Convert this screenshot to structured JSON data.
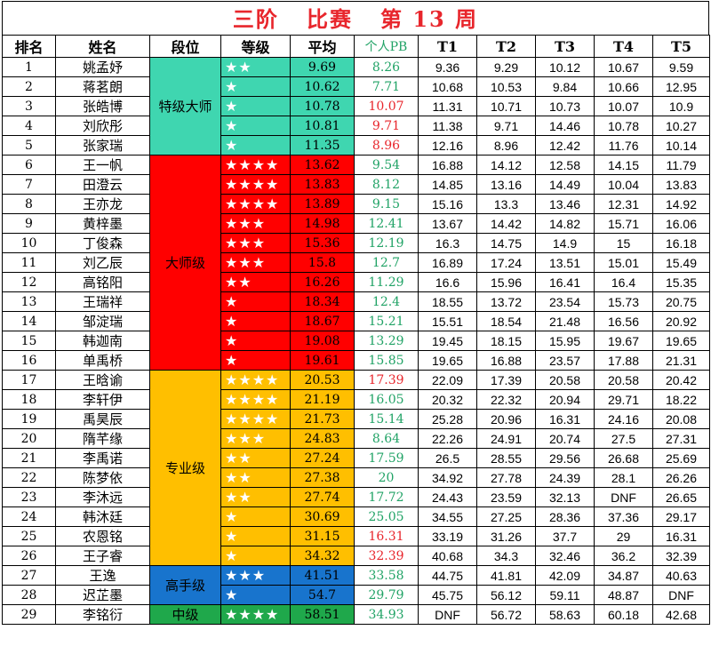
{
  "title": "三阶   比赛   第 13 周",
  "headers": [
    "排名",
    "姓名",
    "段位",
    "等级",
    "平均",
    "个人PB",
    "T1",
    "T2",
    "T3",
    "T4",
    "T5"
  ],
  "colors": {
    "grandmaster": "#3fd6b0",
    "master": "#ff0000",
    "professional": "#ffbf00",
    "expert": "#1874cd",
    "intermediate": "#1fa84b",
    "avg_grandmaster": "#3fd6b0",
    "avg_master": "#ff0000",
    "avg_professional": "#ffbf00",
    "avg_expert": "#1874cd",
    "avg_intermediate": "#1fa84b",
    "pb_green": "#21a366",
    "pb_red": "#e8262c",
    "title_red": "#e8262c"
  },
  "levels": [
    {
      "label": "特级大师",
      "rows": 5,
      "tier": "grandmaster"
    },
    {
      "label": "大师级",
      "rows": 11,
      "tier": "master"
    },
    {
      "label": "专业级",
      "rows": 10,
      "tier": "professional"
    },
    {
      "label": "高手级",
      "rows": 2,
      "tier": "expert"
    },
    {
      "label": "中级",
      "rows": 1,
      "tier": "intermediate"
    }
  ],
  "rows": [
    {
      "rank": "1",
      "name": "姚孟妤",
      "stars": "★★",
      "avg": "9.69",
      "pb": "8.26",
      "pb_color": "green",
      "t": [
        "9.36",
        "9.29",
        "10.12",
        "10.67",
        "9.59"
      ],
      "tier": "grandmaster"
    },
    {
      "rank": "2",
      "name": "蒋茗朗",
      "stars": "★",
      "avg": "10.62",
      "pb": "7.71",
      "pb_color": "green",
      "t": [
        "10.68",
        "10.53",
        "9.84",
        "10.66",
        "12.95"
      ],
      "tier": "grandmaster"
    },
    {
      "rank": "3",
      "name": "张皓博",
      "stars": "★",
      "avg": "10.78",
      "pb": "10.07",
      "pb_color": "red",
      "t": [
        "11.31",
        "10.71",
        "10.73",
        "10.07",
        "10.9"
      ],
      "tier": "grandmaster"
    },
    {
      "rank": "4",
      "name": "刘欣彤",
      "stars": "★",
      "avg": "10.81",
      "pb": "9.71",
      "pb_color": "red",
      "t": [
        "11.38",
        "9.71",
        "14.46",
        "10.78",
        "10.27"
      ],
      "tier": "grandmaster"
    },
    {
      "rank": "5",
      "name": "张家瑞",
      "stars": "★",
      "avg": "11.35",
      "pb": "8.96",
      "pb_color": "red",
      "t": [
        "12.16",
        "8.96",
        "12.42",
        "11.76",
        "10.14"
      ],
      "tier": "grandmaster"
    },
    {
      "rank": "6",
      "name": "王一帆",
      "stars": "★★★★",
      "avg": "13.62",
      "pb": "9.54",
      "pb_color": "green",
      "t": [
        "16.88",
        "14.12",
        "12.58",
        "14.15",
        "11.79"
      ],
      "tier": "master"
    },
    {
      "rank": "7",
      "name": "田澄云",
      "stars": "★★★★",
      "avg": "13.83",
      "pb": "8.12",
      "pb_color": "green",
      "t": [
        "14.85",
        "13.16",
        "14.49",
        "10.04",
        "13.83"
      ],
      "tier": "master"
    },
    {
      "rank": "8",
      "name": "王亦龙",
      "stars": "★★★★",
      "avg": "13.89",
      "pb": "9.15",
      "pb_color": "green",
      "t": [
        "15.16",
        "13.3",
        "13.46",
        "12.31",
        "14.92"
      ],
      "tier": "master"
    },
    {
      "rank": "9",
      "name": "黄梓墨",
      "stars": "★★★",
      "avg": "14.98",
      "pb": "12.41",
      "pb_color": "green",
      "t": [
        "13.67",
        "14.42",
        "14.82",
        "15.71",
        "16.06"
      ],
      "tier": "master"
    },
    {
      "rank": "10",
      "name": "丁俊森",
      "stars": "★★★",
      "avg": "15.36",
      "pb": "12.19",
      "pb_color": "green",
      "t": [
        "16.3",
        "14.75",
        "14.9",
        "15",
        "16.18"
      ],
      "tier": "master"
    },
    {
      "rank": "11",
      "name": "刘乙辰",
      "stars": "★★★",
      "avg": "15.8",
      "pb": "12.7",
      "pb_color": "green",
      "t": [
        "16.89",
        "17.24",
        "13.51",
        "15.01",
        "15.49"
      ],
      "tier": "master"
    },
    {
      "rank": "12",
      "name": "高铭阳",
      "stars": "★★",
      "avg": "16.26",
      "pb": "11.29",
      "pb_color": "green",
      "t": [
        "16.6",
        "15.96",
        "16.41",
        "16.4",
        "15.35"
      ],
      "tier": "master"
    },
    {
      "rank": "13",
      "name": "王瑞祥",
      "stars": "★",
      "avg": "18.34",
      "pb": "12.4",
      "pb_color": "green",
      "t": [
        "18.55",
        "13.72",
        "23.54",
        "15.73",
        "20.75"
      ],
      "tier": "master"
    },
    {
      "rank": "14",
      "name": "邹淀瑞",
      "stars": "★",
      "avg": "18.67",
      "pb": "15.21",
      "pb_color": "green",
      "t": [
        "15.51",
        "18.54",
        "21.48",
        "16.56",
        "20.92"
      ],
      "tier": "master"
    },
    {
      "rank": "15",
      "name": "韩迦南",
      "stars": "★",
      "avg": "19.08",
      "pb": "13.29",
      "pb_color": "green",
      "t": [
        "19.45",
        "18.15",
        "15.95",
        "19.67",
        "19.65"
      ],
      "tier": "master"
    },
    {
      "rank": "16",
      "name": "单禹桥",
      "stars": "★",
      "avg": "19.61",
      "pb": "15.85",
      "pb_color": "green",
      "t": [
        "19.65",
        "16.88",
        "23.57",
        "17.88",
        "21.31"
      ],
      "tier": "master"
    },
    {
      "rank": "17",
      "name": "王晗谕",
      "stars": "★★★★",
      "avg": "20.53",
      "pb": "17.39",
      "pb_color": "red",
      "t": [
        "22.09",
        "17.39",
        "20.58",
        "20.58",
        "20.42"
      ],
      "tier": "professional"
    },
    {
      "rank": "18",
      "name": "李轩伊",
      "stars": "★★★★",
      "avg": "21.19",
      "pb": "16.05",
      "pb_color": "green",
      "t": [
        "20.32",
        "22.32",
        "20.94",
        "29.71",
        "18.22"
      ],
      "tier": "professional"
    },
    {
      "rank": "19",
      "name": "禹昊辰",
      "stars": "★★★★",
      "avg": "21.73",
      "pb": "15.14",
      "pb_color": "green",
      "t": [
        "25.28",
        "20.96",
        "16.31",
        "24.16",
        "20.08"
      ],
      "tier": "professional"
    },
    {
      "rank": "20",
      "name": "隋芊缘",
      "stars": "★★★",
      "avg": "24.83",
      "pb": "8.64",
      "pb_color": "green",
      "t": [
        "22.26",
        "24.91",
        "20.74",
        "27.5",
        "27.31"
      ],
      "tier": "professional"
    },
    {
      "rank": "21",
      "name": "李禹诺",
      "stars": "★★",
      "avg": "27.24",
      "pb": "17.59",
      "pb_color": "green",
      "t": [
        "26.5",
        "28.55",
        "29.56",
        "26.68",
        "25.69"
      ],
      "tier": "professional"
    },
    {
      "rank": "22",
      "name": "陈梦依",
      "stars": "★★",
      "avg": "27.38",
      "pb": "20",
      "pb_color": "green",
      "t": [
        "34.92",
        "27.78",
        "24.39",
        "28.1",
        "26.26"
      ],
      "tier": "professional"
    },
    {
      "rank": "23",
      "name": "李沐远",
      "stars": "★★",
      "avg": "27.74",
      "pb": "17.72",
      "pb_color": "green",
      "t": [
        "24.43",
        "23.59",
        "32.13",
        "DNF",
        "26.65"
      ],
      "tier": "professional"
    },
    {
      "rank": "24",
      "name": "韩沐廷",
      "stars": "★",
      "avg": "30.69",
      "pb": "25.05",
      "pb_color": "green",
      "t": [
        "34.55",
        "27.25",
        "28.36",
        "37.36",
        "29.17"
      ],
      "tier": "professional"
    },
    {
      "rank": "25",
      "name": "农恩铭",
      "stars": "★",
      "avg": "31.15",
      "pb": "16.31",
      "pb_color": "red",
      "t": [
        "33.19",
        "31.26",
        "37.7",
        "29",
        "16.31"
      ],
      "tier": "professional"
    },
    {
      "rank": "26",
      "name": "王子睿",
      "stars": "★",
      "avg": "34.32",
      "pb": "32.39",
      "pb_color": "red",
      "t": [
        "40.68",
        "34.3",
        "32.46",
        "36.2",
        "32.39"
      ],
      "tier": "professional"
    },
    {
      "rank": "27",
      "name": "王逸",
      "stars": "★★★",
      "avg": "41.51",
      "pb": "33.58",
      "pb_color": "green",
      "t": [
        "44.75",
        "41.81",
        "42.09",
        "34.87",
        "40.63"
      ],
      "tier": "expert"
    },
    {
      "rank": "28",
      "name": "迟芷墨",
      "stars": "★",
      "avg": "54.7",
      "pb": "29.79",
      "pb_color": "green",
      "t": [
        "45.75",
        "56.12",
        "59.11",
        "48.87",
        "DNF"
      ],
      "tier": "expert"
    },
    {
      "rank": "29",
      "name": "李铭衍",
      "stars": "★★★★",
      "avg": "58.51",
      "pb": "34.93",
      "pb_color": "green",
      "t": [
        "DNF",
        "56.72",
        "58.63",
        "60.18",
        "42.68"
      ],
      "tier": "intermediate"
    }
  ]
}
